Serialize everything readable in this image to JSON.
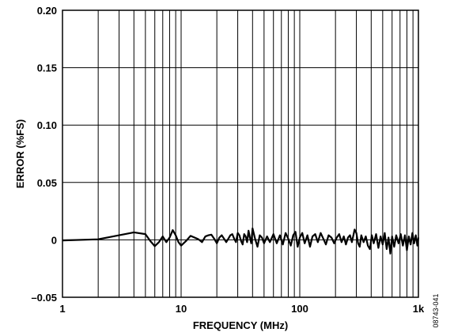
{
  "chart_data": {
    "type": "line",
    "title": "",
    "xlabel": "FREQUENCY (MHz)",
    "ylabel": "ERROR (%FS)",
    "x_scale": "log",
    "xlim": [
      1,
      1000
    ],
    "ylim": [
      -0.05,
      0.2
    ],
    "x_ticks": [
      1,
      10,
      100,
      1000
    ],
    "x_tick_labels": [
      "1",
      "10",
      "100",
      "1k"
    ],
    "y_ticks": [
      0.2,
      0.15,
      0.1,
      0.05,
      0,
      -0.05
    ],
    "y_tick_labels": [
      "0.20",
      "0.15",
      "0.10",
      "0.05",
      "0",
      "–0.05"
    ],
    "grid": true,
    "figure_id": "08743-041",
    "series": [
      {
        "color": "#000000",
        "points": [
          [
            1,
            -0.0005
          ],
          [
            2,
            0.0005
          ],
          [
            3,
            0.004
          ],
          [
            4,
            0.0065
          ],
          [
            5,
            0.005
          ],
          [
            5.5,
            -0.001
          ],
          [
            6,
            -0.0055
          ],
          [
            6.5,
            -0.002
          ],
          [
            7,
            0.003
          ],
          [
            7.5,
            -0.002
          ],
          [
            8,
            0.002
          ],
          [
            8.5,
            0.0085
          ],
          [
            9,
            0.004
          ],
          [
            9.5,
            -0.002
          ],
          [
            10,
            -0.005
          ],
          [
            11,
            -0.001
          ],
          [
            12,
            0.0035
          ],
          [
            13,
            0.002
          ],
          [
            14,
            0.0005
          ],
          [
            15,
            -0.002
          ],
          [
            16,
            0.003
          ],
          [
            17,
            0.004
          ],
          [
            18,
            0.0045
          ],
          [
            19,
            0.001
          ],
          [
            20,
            -0.003
          ],
          [
            21,
            0.002
          ],
          [
            22,
            0.004
          ],
          [
            23,
            0.001
          ],
          [
            24,
            -0.002
          ],
          [
            25,
            0.001
          ],
          [
            26,
            0.004
          ],
          [
            27,
            0.005
          ],
          [
            28,
            0.001
          ],
          [
            29,
            -0.002
          ],
          [
            30,
            0.006
          ],
          [
            31,
            0.004
          ],
          [
            32,
            -0.001
          ],
          [
            33,
            -0.004
          ],
          [
            34,
            0.005
          ],
          [
            35,
            0.003
          ],
          [
            36,
            -0.002
          ],
          [
            37,
            0.008
          ],
          [
            38,
            0.002
          ],
          [
            39,
            -0.003
          ],
          [
            40,
            0.01
          ],
          [
            42,
            0.001
          ],
          [
            44,
            -0.006
          ],
          [
            46,
            0.004
          ],
          [
            48,
            0.002
          ],
          [
            50,
            -0.003
          ],
          [
            53,
            0.003
          ],
          [
            56,
            -0.002
          ],
          [
            60,
            0.005
          ],
          [
            64,
            -0.003
          ],
          [
            68,
            0.004
          ],
          [
            72,
            -0.004
          ],
          [
            76,
            0.006
          ],
          [
            80,
            0.001
          ],
          [
            84,
            -0.005
          ],
          [
            88,
            0.004
          ],
          [
            92,
            0.007
          ],
          [
            96,
            -0.006
          ],
          [
            100,
            0.002
          ],
          [
            105,
            0.006
          ],
          [
            110,
            -0.003
          ],
          [
            116,
            0.004
          ],
          [
            122,
            -0.006
          ],
          [
            128,
            0.003
          ],
          [
            135,
            0.005
          ],
          [
            142,
            -0.002
          ],
          [
            150,
            0.006
          ],
          [
            158,
            0.001
          ],
          [
            166,
            -0.004
          ],
          [
            175,
            0.004
          ],
          [
            185,
            0.002
          ],
          [
            195,
            -0.003
          ],
          [
            205,
            0.002
          ],
          [
            215,
            0.005
          ],
          [
            225,
            -0.002
          ],
          [
            235,
            0.003
          ],
          [
            245,
            -0.004
          ],
          [
            255,
            0.002
          ],
          [
            265,
            0.004
          ],
          [
            275,
            -0.002
          ],
          [
            290,
            0.009
          ],
          [
            300,
            0.006
          ],
          [
            310,
            -0.003
          ],
          [
            320,
            -0.006
          ],
          [
            330,
            0.004
          ],
          [
            345,
            -0.002
          ],
          [
            360,
            0.003
          ],
          [
            375,
            -0.005
          ],
          [
            390,
            -0.008
          ],
          [
            405,
            0.004
          ],
          [
            420,
            -0.003
          ],
          [
            440,
            0.005
          ],
          [
            460,
            -0.007
          ],
          [
            480,
            0.003
          ],
          [
            500,
            -0.004
          ],
          [
            520,
            0.006
          ],
          [
            540,
            -0.008
          ],
          [
            560,
            0.002
          ],
          [
            580,
            -0.012
          ],
          [
            600,
            0.003
          ],
          [
            625,
            -0.006
          ],
          [
            650,
            0.004
          ],
          [
            680,
            -0.003
          ],
          [
            710,
            0.005
          ],
          [
            740,
            -0.005
          ],
          [
            770,
            0.004
          ],
          [
            800,
            -0.009
          ],
          [
            830,
            0.003
          ],
          [
            860,
            -0.004
          ],
          [
            890,
            0.006
          ],
          [
            920,
            -0.003
          ],
          [
            950,
            0.004
          ],
          [
            980,
            -0.005
          ],
          [
            1000,
            0.002
          ]
        ]
      }
    ]
  }
}
